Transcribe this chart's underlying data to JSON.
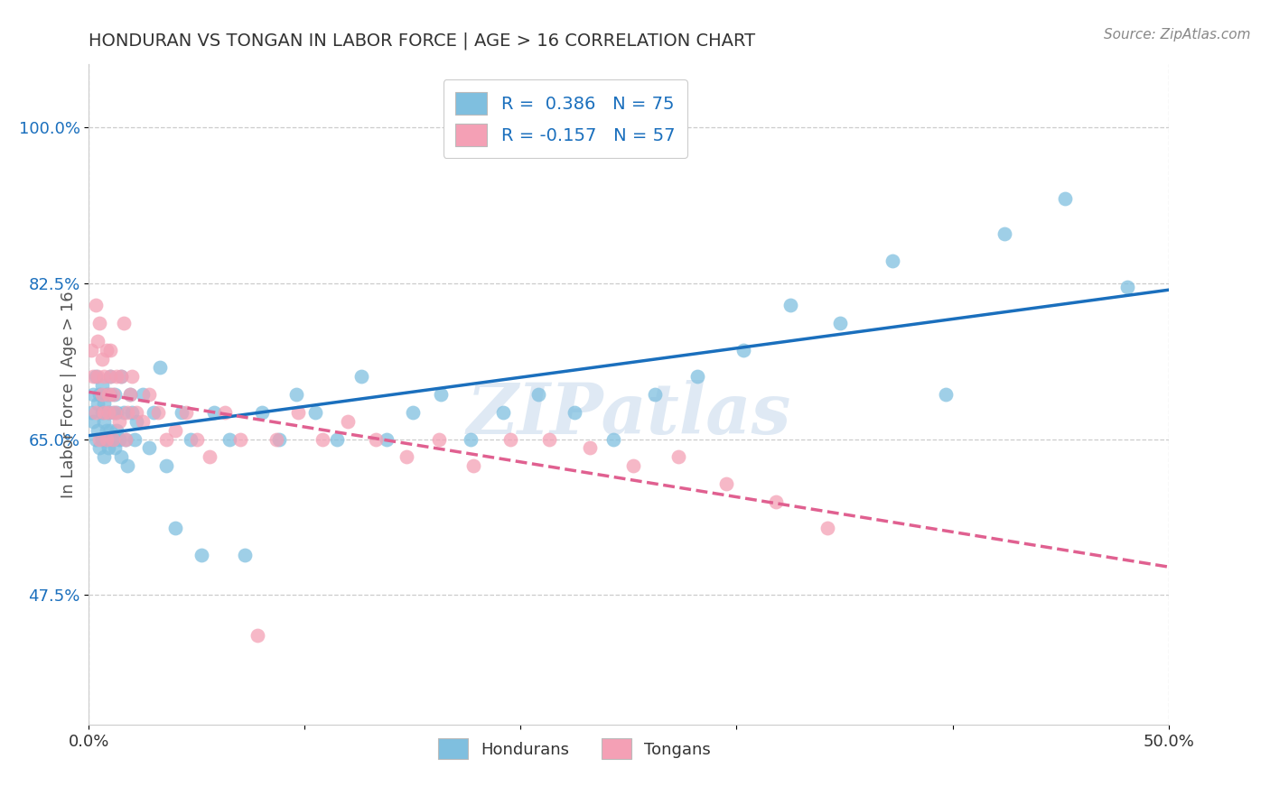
{
  "title": "HONDURAN VS TONGAN IN LABOR FORCE | AGE > 16 CORRELATION CHART",
  "source": "Source: ZipAtlas.com",
  "ylabel": "In Labor Force | Age > 16",
  "xlim": [
    0.0,
    0.5
  ],
  "ylim": [
    0.33,
    1.07
  ],
  "xticks": [
    0.0,
    0.1,
    0.2,
    0.3,
    0.4,
    0.5
  ],
  "xticklabels": [
    "0.0%",
    "",
    "",
    "",
    "",
    "50.0%"
  ],
  "ytick_positions": [
    0.475,
    0.65,
    0.825,
    1.0
  ],
  "yticklabels": [
    "47.5%",
    "65.0%",
    "82.5%",
    "100.0%"
  ],
  "honduran_color": "#7fbfdf",
  "tongan_color": "#f4a0b5",
  "trendline_honduran_color": "#1a6fbd",
  "trendline_tongan_color": "#e06090",
  "legend_line1": "R =  0.386   N = 75",
  "legend_line2": "R = -0.157   N = 57",
  "legend_label_honduran": "Hondurans",
  "legend_label_tongan": "Tongans",
  "watermark": "ZIPatlas",
  "background_color": "#ffffff",
  "grid_color": "#cccccc",
  "honduran_x": [
    0.001,
    0.002,
    0.002,
    0.003,
    0.003,
    0.004,
    0.004,
    0.005,
    0.005,
    0.006,
    0.006,
    0.006,
    0.007,
    0.007,
    0.007,
    0.008,
    0.008,
    0.008,
    0.009,
    0.009,
    0.01,
    0.01,
    0.01,
    0.011,
    0.011,
    0.012,
    0.012,
    0.013,
    0.013,
    0.014,
    0.015,
    0.015,
    0.016,
    0.017,
    0.018,
    0.019,
    0.02,
    0.021,
    0.022,
    0.025,
    0.028,
    0.03,
    0.033,
    0.036,
    0.04,
    0.043,
    0.047,
    0.052,
    0.058,
    0.065,
    0.072,
    0.08,
    0.088,
    0.096,
    0.105,
    0.115,
    0.126,
    0.138,
    0.15,
    0.163,
    0.177,
    0.192,
    0.208,
    0.225,
    0.243,
    0.262,
    0.282,
    0.303,
    0.325,
    0.348,
    0.372,
    0.397,
    0.424,
    0.452,
    0.481
  ],
  "honduran_y": [
    0.68,
    0.7,
    0.67,
    0.72,
    0.65,
    0.69,
    0.66,
    0.7,
    0.64,
    0.68,
    0.71,
    0.65,
    0.67,
    0.69,
    0.63,
    0.66,
    0.7,
    0.65,
    0.68,
    0.64,
    0.7,
    0.66,
    0.72,
    0.65,
    0.68,
    0.64,
    0.7,
    0.66,
    0.68,
    0.65,
    0.72,
    0.63,
    0.68,
    0.65,
    0.62,
    0.7,
    0.68,
    0.65,
    0.67,
    0.7,
    0.64,
    0.68,
    0.73,
    0.62,
    0.55,
    0.68,
    0.65,
    0.52,
    0.68,
    0.65,
    0.52,
    0.68,
    0.65,
    0.7,
    0.68,
    0.65,
    0.72,
    0.65,
    0.68,
    0.7,
    0.65,
    0.68,
    0.7,
    0.68,
    0.65,
    0.7,
    0.72,
    0.75,
    0.8,
    0.78,
    0.85,
    0.7,
    0.88,
    0.92,
    0.82
  ],
  "tongan_x": [
    0.001,
    0.002,
    0.003,
    0.003,
    0.004,
    0.004,
    0.005,
    0.005,
    0.006,
    0.006,
    0.007,
    0.007,
    0.008,
    0.008,
    0.009,
    0.009,
    0.01,
    0.01,
    0.011,
    0.011,
    0.012,
    0.013,
    0.014,
    0.015,
    0.016,
    0.017,
    0.018,
    0.019,
    0.02,
    0.022,
    0.025,
    0.028,
    0.032,
    0.036,
    0.04,
    0.045,
    0.05,
    0.056,
    0.063,
    0.07,
    0.078,
    0.087,
    0.097,
    0.108,
    0.12,
    0.133,
    0.147,
    0.162,
    0.178,
    0.195,
    0.213,
    0.232,
    0.252,
    0.273,
    0.295,
    0.318,
    0.342
  ],
  "tongan_y": [
    0.75,
    0.72,
    0.8,
    0.68,
    0.72,
    0.76,
    0.65,
    0.78,
    0.7,
    0.74,
    0.68,
    0.72,
    0.75,
    0.65,
    0.7,
    0.68,
    0.72,
    0.75,
    0.65,
    0.7,
    0.68,
    0.72,
    0.67,
    0.72,
    0.78,
    0.65,
    0.68,
    0.7,
    0.72,
    0.68,
    0.67,
    0.7,
    0.68,
    0.65,
    0.66,
    0.68,
    0.65,
    0.63,
    0.68,
    0.65,
    0.43,
    0.65,
    0.68,
    0.65,
    0.67,
    0.65,
    0.63,
    0.65,
    0.62,
    0.65,
    0.65,
    0.64,
    0.62,
    0.63,
    0.6,
    0.58,
    0.55
  ]
}
